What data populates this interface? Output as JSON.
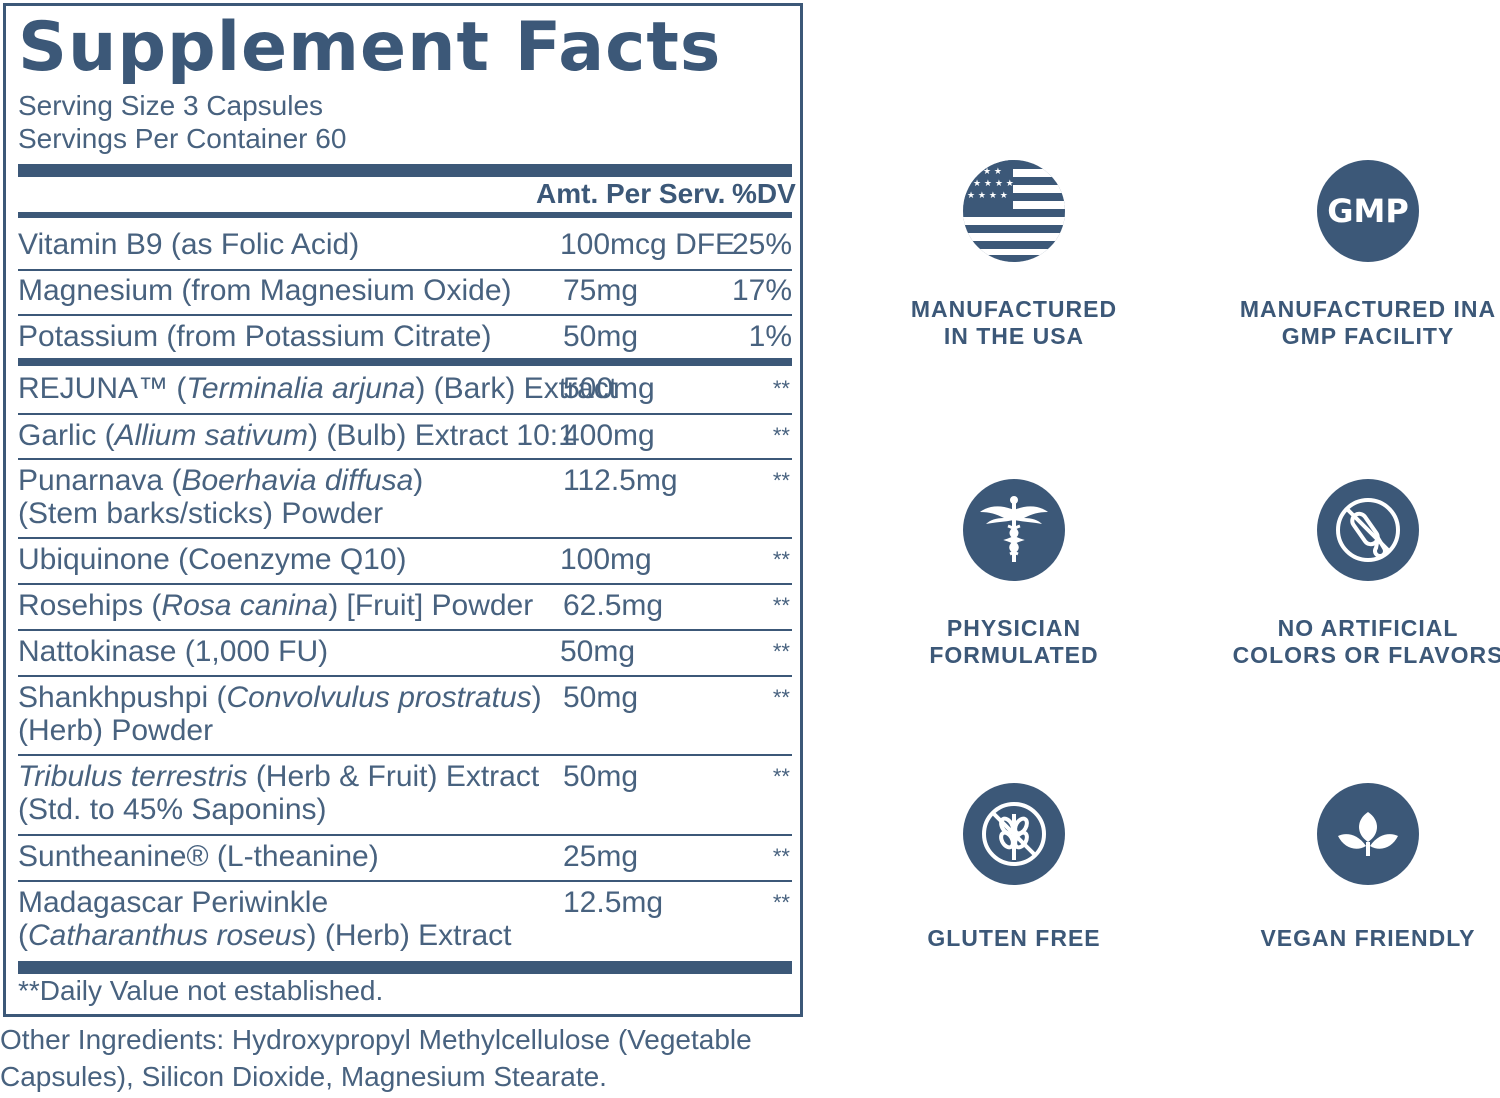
{
  "facts": {
    "title": "Supplement Facts",
    "serving_size": "Serving Size 3 Capsules",
    "servings_per_container": "Servings Per Container 60",
    "col_amount": "Amt. Per Serv.",
    "col_dv": "%DV",
    "rows": [
      {
        "name_pre": "Vitamin B9 (as Folic Acid)",
        "name_it": "",
        "name_post": "",
        "line2": "",
        "amount": "100mcg DFE",
        "dv": "25%"
      },
      {
        "name_pre": "Magnesium (from Magnesium Oxide)",
        "name_it": "",
        "name_post": "",
        "line2": "",
        "amount": "75mg",
        "dv": "17%"
      },
      {
        "name_pre": "Potassium (from Potassium Citrate)",
        "name_it": "",
        "name_post": "",
        "line2": "",
        "amount": "50mg",
        "dv": "1%"
      },
      {
        "name_pre": "REJUNA™ (",
        "name_it": "Terminalia arjuna",
        "name_post": ") (Bark) Extract",
        "line2": "",
        "amount": "500mg",
        "dv": "**"
      },
      {
        "name_pre": "Garlic (",
        "name_it": "Allium sativum",
        "name_post": ") (Bulb) Extract 10:1",
        "line2": "",
        "amount": "400mg",
        "dv": "**"
      },
      {
        "name_pre": "Punarnava (",
        "name_it": "Boerhavia diffusa",
        "name_post": ")",
        "line2": "(Stem barks/sticks) Powder",
        "amount": "112.5mg",
        "dv": "**"
      },
      {
        "name_pre": "Ubiquinone (Coenzyme Q10)",
        "name_it": "",
        "name_post": "",
        "line2": "",
        "amount": "100mg",
        "dv": "**"
      },
      {
        "name_pre": "Rosehips (",
        "name_it": "Rosa canina",
        "name_post": ") [Fruit] Powder",
        "line2": "",
        "amount": "62.5mg",
        "dv": "**"
      },
      {
        "name_pre": "Nattokinase (1,000 FU)",
        "name_it": "",
        "name_post": "",
        "line2": "",
        "amount": "50mg",
        "dv": "**"
      },
      {
        "name_pre": "Shankhpushpi (",
        "name_it": "Convolvulus prostratus",
        "name_post": ")",
        "line2": "(Herb) Powder",
        "amount": "50mg",
        "dv": "**"
      },
      {
        "name_pre": "",
        "name_it": "Tribulus terrestris",
        "name_post": " (Herb & Fruit) Extract",
        "line2": "(Std. to 45% Saponins)",
        "amount": "50mg",
        "dv": "**"
      },
      {
        "name_pre": "Suntheanine® (L-theanine)",
        "name_it": "",
        "name_post": "",
        "line2": "",
        "amount": "25mg",
        "dv": "**"
      },
      {
        "name_pre": "Madagascar Periwinkle",
        "name_it": "",
        "name_post": "",
        "line2_pre": "(",
        "line2_it": "Catharanthus roseus",
        "line2_post": ") (Herb) Extract",
        "amount": "12.5mg",
        "dv": "**"
      }
    ],
    "footnote": "**Daily Value not established."
  },
  "other_ingredients": {
    "line1": "Other Ingredients: Hydroxypropyl Methylcellulose (Vegetable",
    "line2": "Capsules), Silicon Dioxide, Magnesium Stearate."
  },
  "badges": [
    {
      "icon": "us-flag-icon",
      "line1": "MANUFACTURED",
      "line2": "IN THE USA"
    },
    {
      "icon": "gmp-icon",
      "icon_text": "GMP",
      "line1": "MANUFACTURED INA",
      "line2": "GMP FACILITY"
    },
    {
      "icon": "caduceus-icon",
      "line1": "PHYSICIAN",
      "line2": "FORMULATED"
    },
    {
      "icon": "no-test-tube-icon",
      "line1": "NO ARTIFICIAL",
      "line2": "COLORS OR FLAVORS"
    },
    {
      "icon": "no-wheat-icon",
      "line1": "GLUTEN FREE",
      "line2": ""
    },
    {
      "icon": "leaf-icon",
      "line1": "VEGAN FRIENDLY",
      "line2": ""
    }
  ],
  "colors": {
    "primary": "#3c5878",
    "text": "#48627f"
  }
}
